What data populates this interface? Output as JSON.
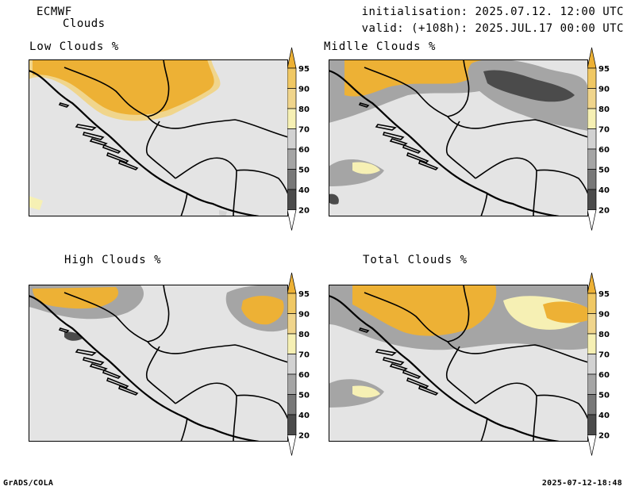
{
  "header": {
    "model": "ECMWF",
    "product": "Clouds",
    "init": "initialisation: 2025.07.12. 12:00 UTC",
    "valid": "valid: (+108h): 2025.JUL.17 00:00 UTC"
  },
  "panels": [
    {
      "title": "Low Clouds %"
    },
    {
      "title": "Midlle Clouds %"
    },
    {
      "title": "High Clouds %"
    },
    {
      "title": "Total Clouds %"
    }
  ],
  "colorbar": {
    "levels": [
      "20",
      "40",
      "50",
      "60",
      "70",
      "80",
      "90",
      "95"
    ],
    "colors": {
      "below20": "#ffffff",
      "c20_40": "#4b4b4b",
      "c40_50": "#787878",
      "c50_60": "#a5a5a5",
      "c60_70": "#d2d2d2",
      "c70_80": "#f6f0b4",
      "c80_90": "#f0d58c",
      "c90_95": "#f0c864",
      "c95": "#edb135"
    }
  },
  "map": {
    "background": "#e4e4e4"
  },
  "footer": {
    "left": "GrADS/COLA",
    "right": "2025-07-12-18:48"
  }
}
